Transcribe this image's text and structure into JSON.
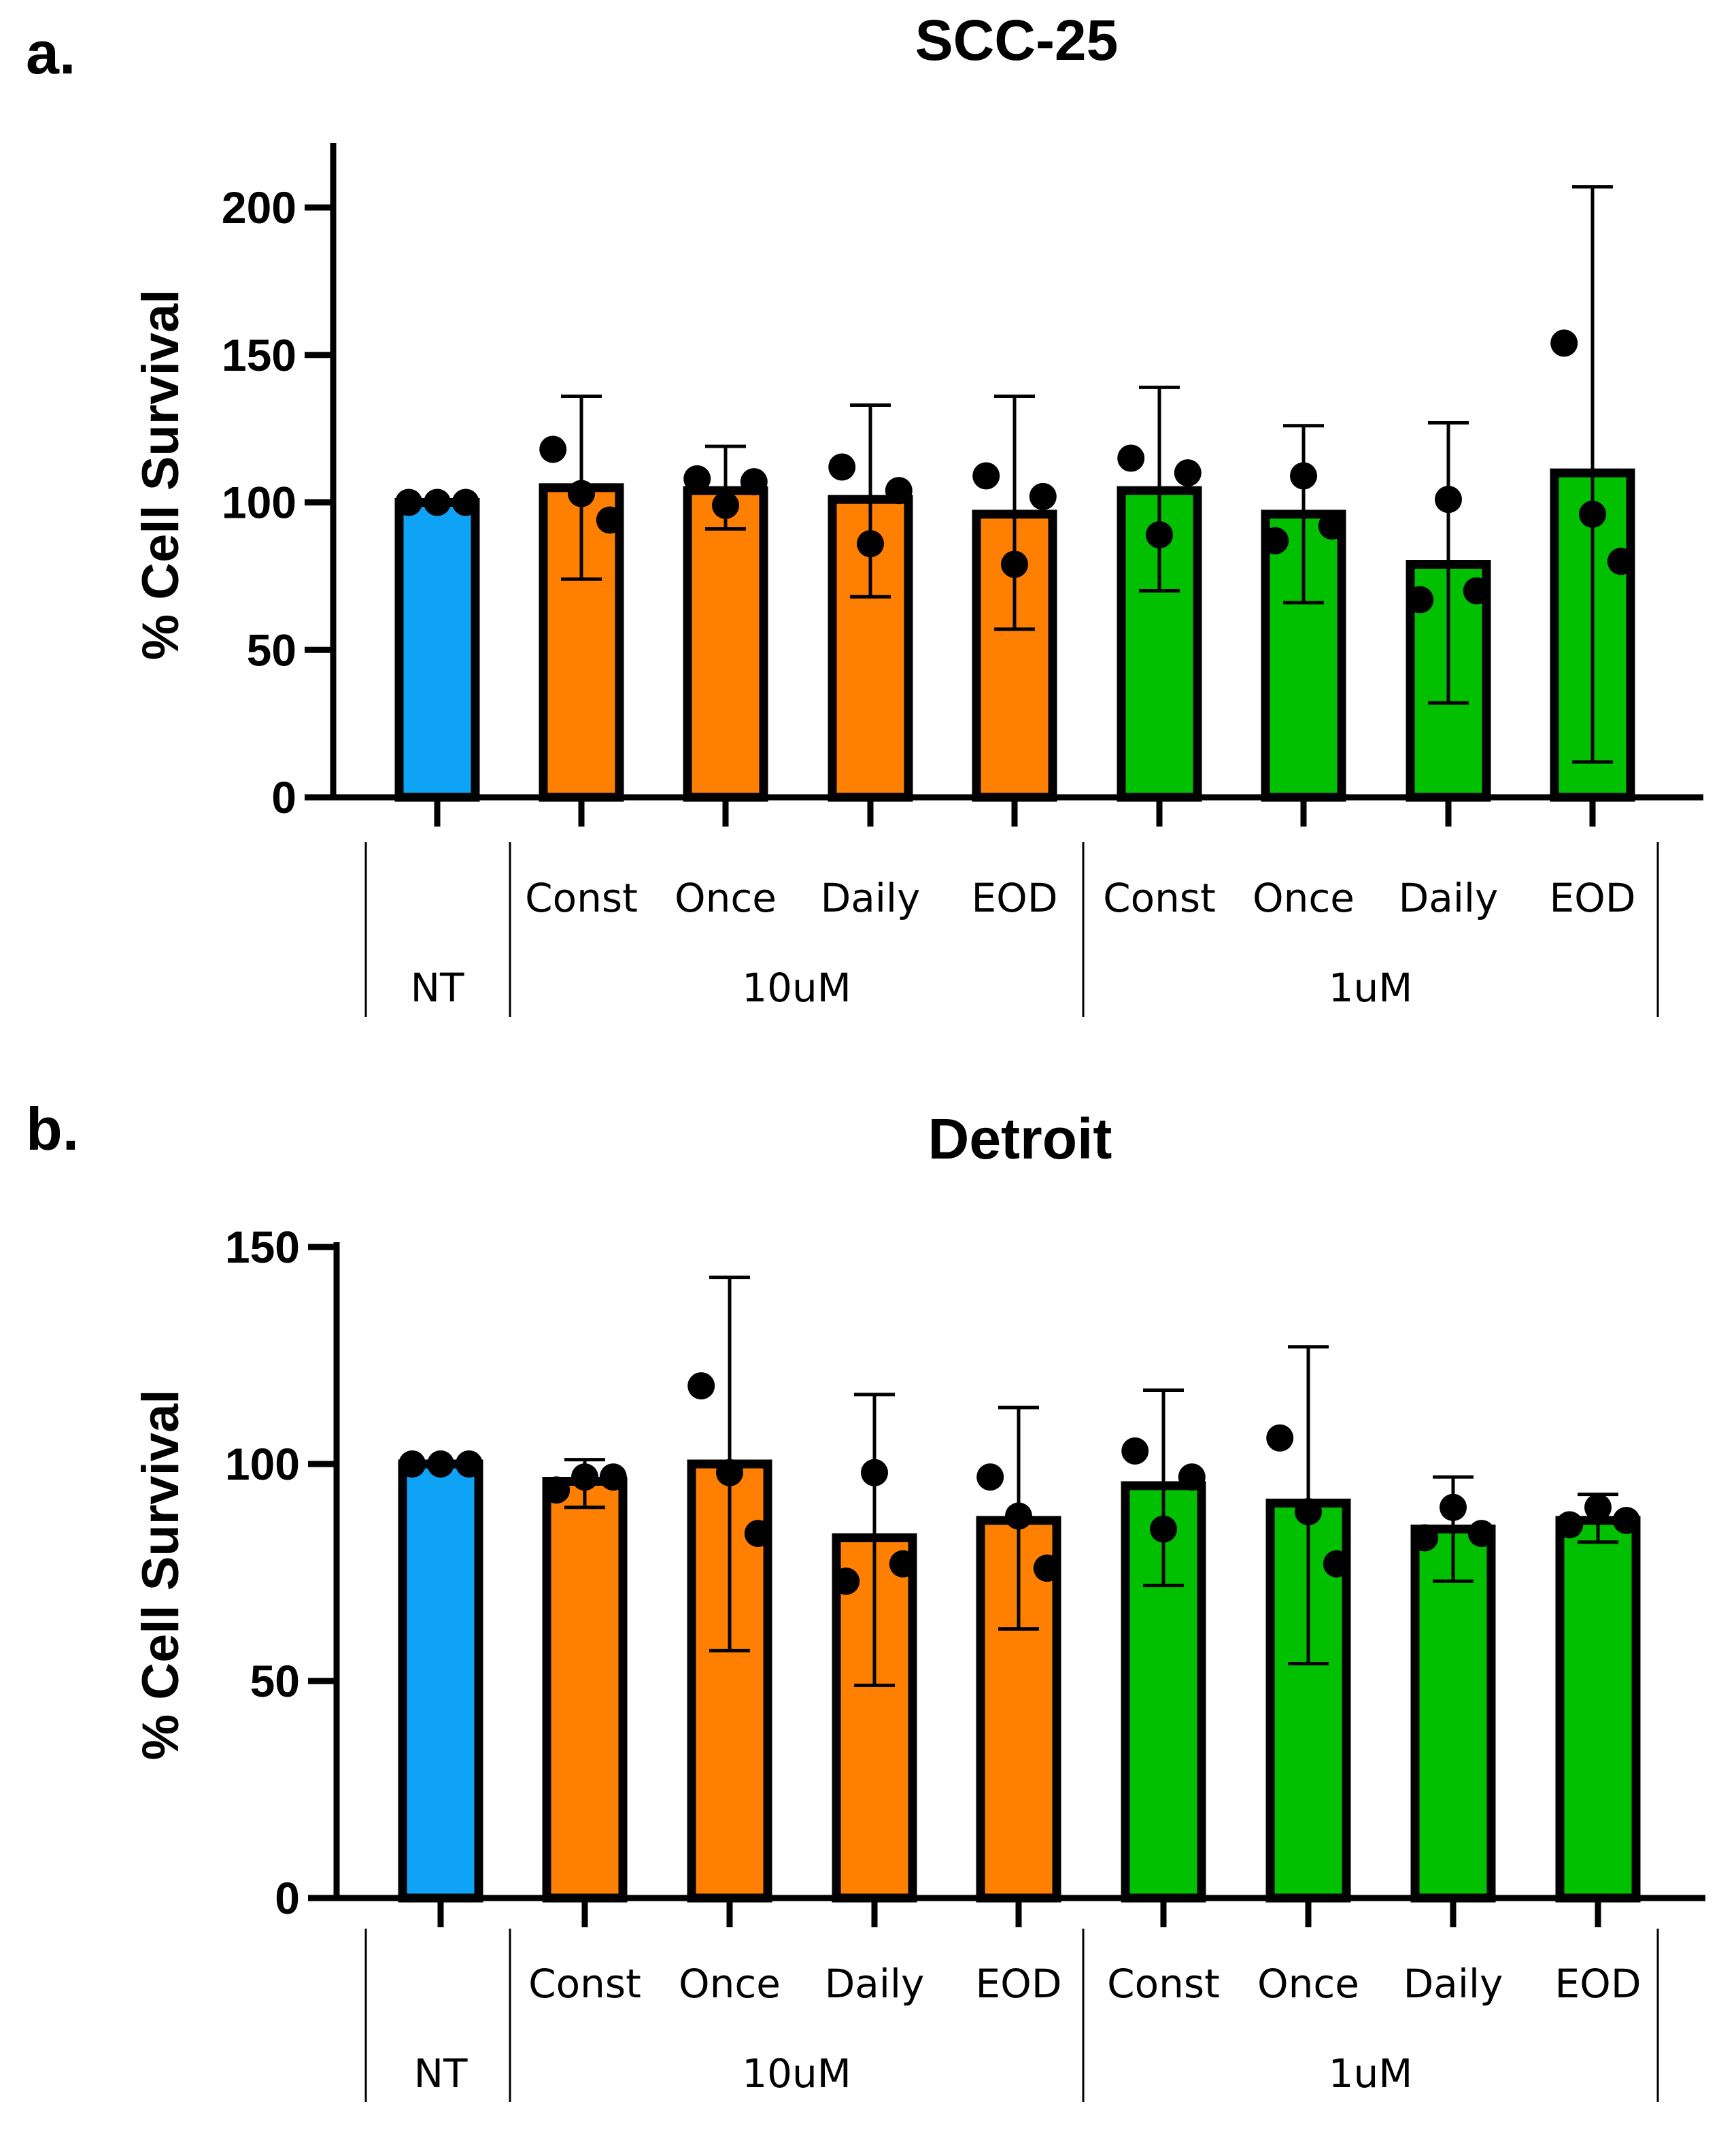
{
  "panels": [
    {
      "letter": "a."
    },
    {
      "letter": "b."
    }
  ],
  "colors": {
    "NT": "#0fa3f5",
    "10uM": "#ff8000",
    "1uM": "#00c000",
    "ink": "#000000"
  },
  "chart_data": [
    {
      "type": "bar",
      "title": "SCC-25",
      "xlabel": "",
      "ylabel": "% Cell Survival",
      "ylim": [
        0,
        220
      ],
      "yticks": [
        0,
        50,
        100,
        150,
        200
      ],
      "grid": false,
      "categories": [
        "",
        "Const",
        "Once",
        "Daily",
        "EOD",
        "Const",
        "Once",
        "Daily",
        "EOD"
      ],
      "groups": [
        {
          "label": "NT",
          "span": [
            0,
            0
          ],
          "color": "NT"
        },
        {
          "label": "10uM",
          "span": [
            1,
            4
          ],
          "color": "10uM"
        },
        {
          "label": "1uM",
          "span": [
            5,
            8
          ],
          "color": "1uM"
        }
      ],
      "values": [
        100,
        105,
        104,
        101,
        96,
        104,
        96,
        79,
        110
      ],
      "error_upper": [
        100,
        136,
        119,
        133,
        136,
        139,
        126,
        127,
        207
      ],
      "error_lower": [
        100,
        74,
        91,
        68,
        57,
        70,
        66,
        32,
        12
      ],
      "points": [
        [
          100,
          100,
          100
        ],
        [
          118,
          103,
          94
        ],
        [
          108,
          99,
          107
        ],
        [
          112,
          86,
          104
        ],
        [
          109,
          79,
          102
        ],
        [
          115,
          89,
          110
        ],
        [
          87,
          109,
          92
        ],
        [
          67,
          101,
          70
        ],
        [
          154,
          96,
          80
        ]
      ]
    },
    {
      "type": "bar",
      "title": "Detroit",
      "xlabel": "",
      "ylabel": "% Cell Survival",
      "ylim": [
        0,
        150
      ],
      "yticks": [
        0,
        50,
        100,
        150
      ],
      "grid": false,
      "categories": [
        "",
        "Const",
        "Once",
        "Daily",
        "EOD",
        "Const",
        "Once",
        "Daily",
        "EOD"
      ],
      "groups": [
        {
          "label": "NT",
          "span": [
            0,
            0
          ],
          "color": "NT"
        },
        {
          "label": "10uM",
          "span": [
            1,
            4
          ],
          "color": "10uM"
        },
        {
          "label": "1uM",
          "span": [
            5,
            8
          ],
          "color": "1uM"
        }
      ],
      "values": [
        100,
        96,
        100,
        83,
        87,
        95,
        91,
        85,
        87
      ],
      "error_upper": [
        100,
        101,
        143,
        116,
        113,
        117,
        127,
        97,
        93
      ],
      "error_lower": [
        100,
        90,
        57,
        49,
        62,
        72,
        54,
        73,
        82
      ],
      "points": [
        [
          100,
          100,
          100
        ],
        [
          94,
          97,
          97
        ],
        [
          118,
          98,
          84
        ],
        [
          73,
          98,
          77
        ],
        [
          97,
          88,
          76
        ],
        [
          103,
          85,
          97
        ],
        [
          106,
          89,
          77
        ],
        [
          83,
          90,
          84
        ],
        [
          86,
          90,
          87
        ]
      ]
    }
  ]
}
